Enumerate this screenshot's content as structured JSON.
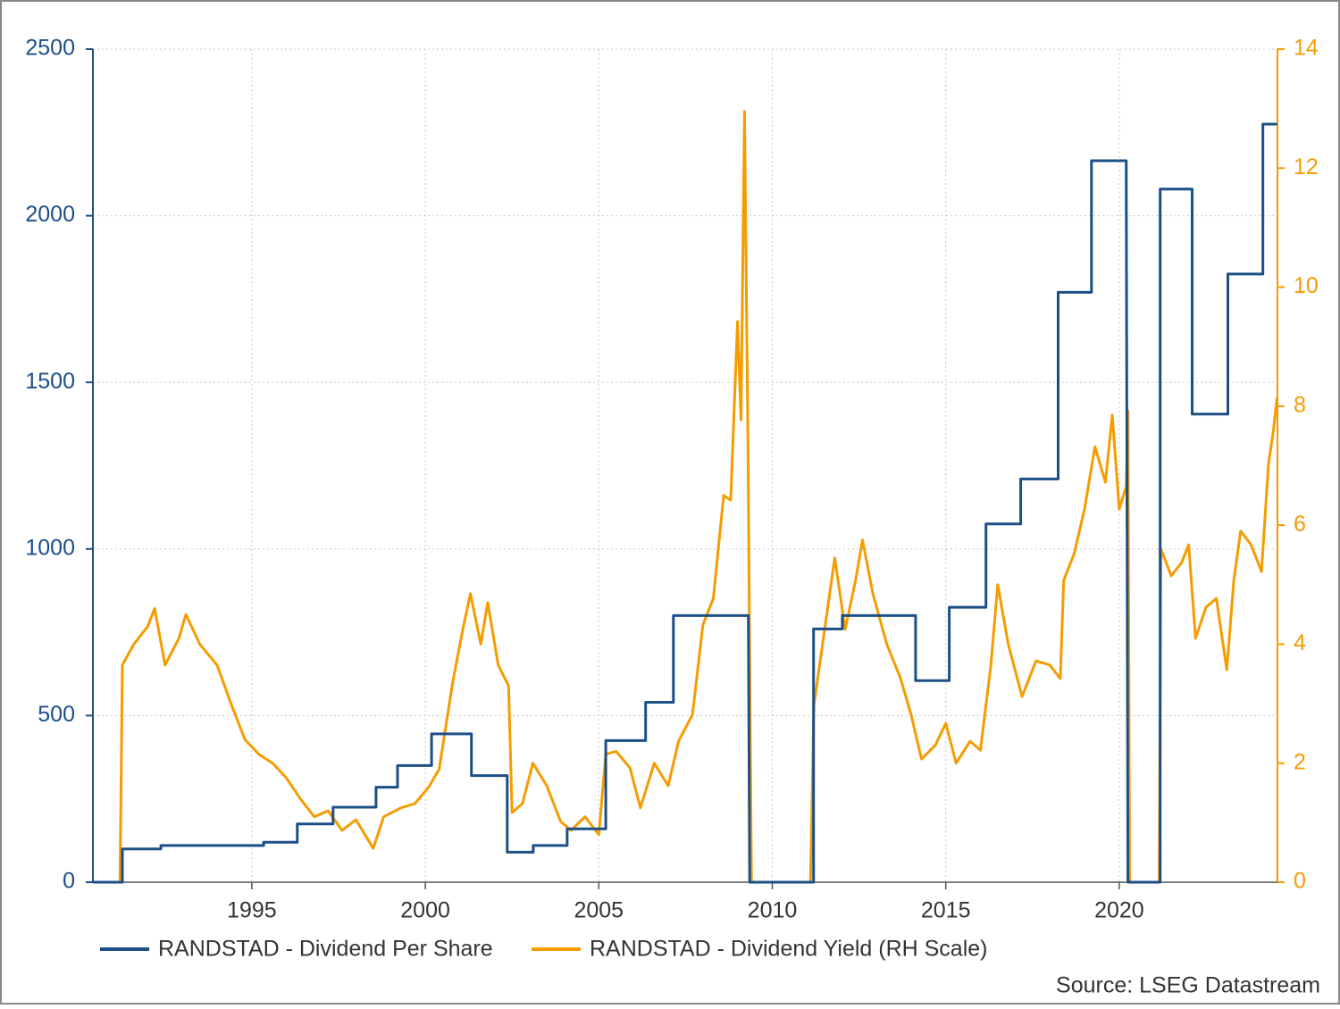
{
  "chart_data": {
    "type": "line",
    "source": "Source: LSEG Datastream",
    "grid": true,
    "legend": "bottom",
    "xlim": [
      1990.42,
      2024.56
    ],
    "xticks": [
      1995,
      2000,
      2005,
      2010,
      2015,
      2020
    ],
    "ylim": [
      0,
      2500
    ],
    "yticks": [
      0,
      500,
      1000,
      1500,
      2000,
      2500
    ],
    "y2lim": [
      0,
      14
    ],
    "y2ticks": [
      0,
      2,
      4,
      6,
      8,
      10,
      12,
      14
    ],
    "series": [
      {
        "name": "RANDSTAD - Dividend Per Share",
        "color": "#1b4f86",
        "x": [
          1990.42,
          1991.27,
          1991.27,
          1992.38,
          1992.38,
          1995.34,
          1995.34,
          1996.31,
          1996.31,
          1997.34,
          1997.34,
          1998.58,
          1998.58,
          1999.2,
          1999.2,
          2000.18,
          2000.18,
          2001.33,
          2001.33,
          2002.36,
          2002.36,
          2003.11,
          2003.11,
          2004.09,
          2004.09,
          2005.2,
          2005.2,
          2006.35,
          2006.35,
          2007.15,
          2007.15,
          2009.31,
          2009.35,
          2011.19,
          2011.19,
          2012.02,
          2012.02,
          2014.13,
          2014.13,
          2015.1,
          2015.1,
          2016.16,
          2016.16,
          2017.16,
          2017.16,
          2018.24,
          2018.24,
          2019.2,
          2019.2,
          2020.2,
          2020.25,
          2021.18,
          2021.18,
          2022.1,
          2022.1,
          2023.13,
          2023.13,
          2024.14,
          2024.14,
          2024.55
        ],
        "values": [
          0,
          0,
          100,
          100,
          110,
          110,
          120,
          120,
          175,
          175,
          225,
          225,
          285,
          285,
          350,
          350,
          445,
          445,
          320,
          320,
          90,
          90,
          110,
          110,
          160,
          160,
          425,
          425,
          540,
          540,
          800,
          800,
          0,
          0,
          760,
          760,
          800,
          800,
          605,
          605,
          825,
          825,
          1075,
          1075,
          1210,
          1210,
          1770,
          1770,
          2165,
          2165,
          0,
          0,
          2080,
          2080,
          1405,
          1405,
          1825,
          1825,
          2275,
          2275
        ]
      },
      {
        "name": "RANDSTAD - Dividend Yield (RH Scale)",
        "color": "#f59c00",
        "axis": "y2",
        "x": [
          1990.42,
          1991.2,
          1991.27,
          1991.6,
          1992.0,
          1992.2,
          1992.5,
          1992.9,
          1993.1,
          1993.5,
          1994.0,
          1994.4,
          1994.8,
          1995.2,
          1995.6,
          1996.0,
          1996.4,
          1996.8,
          1997.2,
          1997.6,
          1998.0,
          1998.5,
          1998.8,
          1999.3,
          1999.7,
          2000.1,
          2000.4,
          2000.8,
          2001.1,
          2001.3,
          2001.6,
          2001.8,
          2002.1,
          2002.4,
          2002.5,
          2002.8,
          2003.1,
          2003.5,
          2003.9,
          2004.2,
          2004.6,
          2005.0,
          2005.2,
          2005.5,
          2005.9,
          2006.2,
          2006.6,
          2007.0,
          2007.3,
          2007.7,
          2008.0,
          2008.3,
          2008.6,
          2008.8,
          2009.0,
          2009.1,
          2009.2,
          2009.3,
          2009.4,
          2011.1,
          2011.2,
          2011.6,
          2011.8,
          2012.1,
          2012.4,
          2012.6,
          2012.9,
          2013.3,
          2013.7,
          2014.0,
          2014.3,
          2014.7,
          2015.0,
          2015.3,
          2015.7,
          2016.0,
          2016.3,
          2016.5,
          2016.8,
          2017.2,
          2017.6,
          2018.0,
          2018.3,
          2018.4,
          2018.7,
          2019.0,
          2019.3,
          2019.6,
          2019.8,
          2020.0,
          2020.2,
          2020.25,
          2020.3,
          2021.15,
          2021.2,
          2021.5,
          2021.8,
          2022.0,
          2022.2,
          2022.5,
          2022.8,
          2023.1,
          2023.3,
          2023.5,
          2023.8,
          2024.1,
          2024.3,
          2024.45,
          2024.55
        ],
        "values": [
          0,
          0,
          3.65,
          4.0,
          4.3,
          4.6,
          3.65,
          4.1,
          4.5,
          4.0,
          3.65,
          3.0,
          2.4,
          2.15,
          2.0,
          1.75,
          1.4,
          1.1,
          1.2,
          0.87,
          1.05,
          0.57,
          1.1,
          1.25,
          1.32,
          1.6,
          1.9,
          3.4,
          4.3,
          4.85,
          4.0,
          4.7,
          3.65,
          3.3,
          1.17,
          1.32,
          2.0,
          1.62,
          1.02,
          0.87,
          1.1,
          0.8,
          2.15,
          2.2,
          1.92,
          1.25,
          2.0,
          1.62,
          2.37,
          2.82,
          4.32,
          4.77,
          6.5,
          6.42,
          9.42,
          7.77,
          12.95,
          7.32,
          0,
          0,
          2.97,
          4.62,
          5.45,
          4.25,
          5.07,
          5.75,
          4.85,
          4.0,
          3.42,
          2.82,
          2.07,
          2.3,
          2.67,
          2.0,
          2.37,
          2.22,
          3.65,
          5.0,
          4.0,
          3.12,
          3.72,
          3.65,
          3.42,
          5.07,
          5.52,
          6.27,
          7.32,
          6.72,
          7.85,
          6.27,
          6.65,
          7.92,
          0,
          0,
          5.6,
          5.15,
          5.37,
          5.67,
          4.1,
          4.62,
          4.77,
          3.57,
          5.07,
          5.9,
          5.67,
          5.22,
          7.02,
          7.62,
          8.15
        ]
      }
    ]
  }
}
